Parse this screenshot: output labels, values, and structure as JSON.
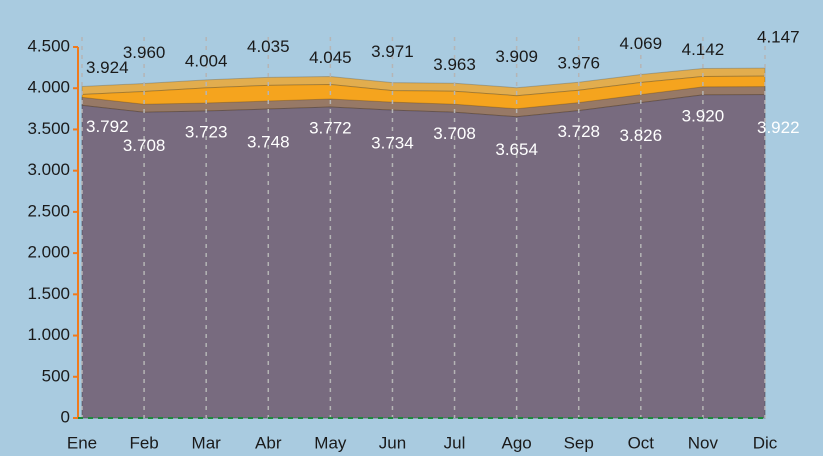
{
  "chart_data": {
    "type": "area",
    "categories": [
      "Ene",
      "Feb",
      "Mar",
      "Abr",
      "May",
      "Jun",
      "Jul",
      "Ago",
      "Sep",
      "Oct",
      "Nov",
      "Dic"
    ],
    "series": [
      {
        "color": "#f5a41e",
        "values": [
          3924,
          3960,
          4004,
          4035,
          4045,
          3971,
          3963,
          3909,
          3976,
          4069,
          4142,
          4147
        ],
        "value_labels": [
          "3.924",
          "3.960",
          "4.004",
          "4.035",
          "4.045",
          "3.971",
          "3.963",
          "3.909",
          "3.976",
          "4.069",
          "4.142",
          "4.147"
        ]
      },
      {
        "color": "#786b7f",
        "values": [
          3792,
          3708,
          3723,
          3748,
          3772,
          3734,
          3708,
          3654,
          3728,
          3826,
          3920,
          3922
        ],
        "value_labels": [
          "3.792",
          "3.708",
          "3.723",
          "3.748",
          "3.772",
          "3.734",
          "3.708",
          "3.654",
          "3.728",
          "3.826",
          "3.920",
          "3.922"
        ]
      }
    ],
    "ylim": [
      0,
      4500
    ],
    "yticks": [
      {
        "value": 0,
        "label": "0"
      },
      {
        "value": 500,
        "label": "500"
      },
      {
        "value": 1000,
        "label": "1.000"
      },
      {
        "value": 1500,
        "label": "1.500"
      },
      {
        "value": 2000,
        "label": "2.000"
      },
      {
        "value": 2500,
        "label": "2.500"
      },
      {
        "value": 3000,
        "label": "3.000"
      },
      {
        "value": 3500,
        "label": "3.500"
      },
      {
        "value": 4000,
        "label": "4.000"
      },
      {
        "value": 4500,
        "label": "4.500"
      }
    ]
  }
}
